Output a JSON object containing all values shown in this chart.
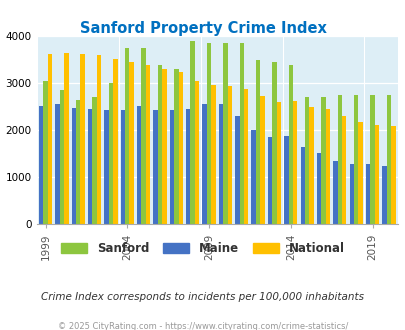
{
  "title": "Sanford Property Crime Index",
  "years": [
    1999,
    2000,
    2001,
    2002,
    2003,
    2004,
    2005,
    2006,
    2007,
    2008,
    2009,
    2010,
    2011,
    2012,
    2013,
    2014,
    2015,
    2016,
    2017,
    2018,
    2019,
    2020
  ],
  "sanford": [
    3050,
    2850,
    2650,
    2700,
    3000,
    3750,
    3750,
    3400,
    3300,
    3900,
    3850,
    3850,
    3850,
    3500,
    3450,
    3400,
    2700,
    2700,
    2750,
    2750,
    2750,
    2750
  ],
  "maine": [
    2520,
    2550,
    2480,
    2450,
    2430,
    2430,
    2520,
    2430,
    2430,
    2460,
    2560,
    2550,
    2310,
    2000,
    1860,
    1870,
    1650,
    1520,
    1350,
    1280,
    1280,
    1250
  ],
  "national": [
    3620,
    3650,
    3620,
    3600,
    3510,
    3450,
    3400,
    3300,
    3250,
    3050,
    2970,
    2940,
    2870,
    2720,
    2600,
    2620,
    2500,
    2460,
    2300,
    2180,
    2110,
    2100
  ],
  "sanford_color": "#8dc63f",
  "maine_color": "#4472c4",
  "national_color": "#ffc000",
  "bg_color": "#ddeef6",
  "title_color": "#0070c0",
  "legend_sanford": "Sanford",
  "legend_maine": "Maine",
  "legend_national": "National",
  "subtitle": "Crime Index corresponds to incidents per 100,000 inhabitants",
  "footer": "© 2025 CityRating.com - https://www.cityrating.com/crime-statistics/",
  "ylim": [
    0,
    4000
  ],
  "yticks": [
    0,
    1000,
    2000,
    3000,
    4000
  ],
  "xtick_years": [
    1999,
    2004,
    2009,
    2014,
    2019
  ]
}
